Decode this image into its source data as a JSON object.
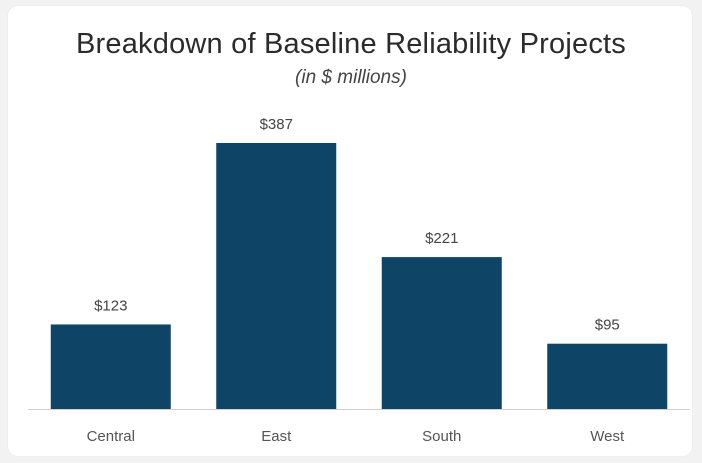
{
  "chart_data": {
    "type": "bar",
    "title": "Breakdown of Baseline Reliability Projects",
    "subtitle": "(in $ millions)",
    "categories": [
      "Central",
      "East",
      "South",
      "West"
    ],
    "values": [
      123,
      387,
      221,
      95
    ],
    "data_labels": [
      "$123",
      "$387",
      "$221",
      "$95"
    ],
    "xlabel": "",
    "ylabel": "",
    "ylim": [
      0,
      387
    ],
    "grid": false,
    "legend": "none",
    "bar_color": "#0e4466",
    "axis_color": "#d0d0d0"
  }
}
